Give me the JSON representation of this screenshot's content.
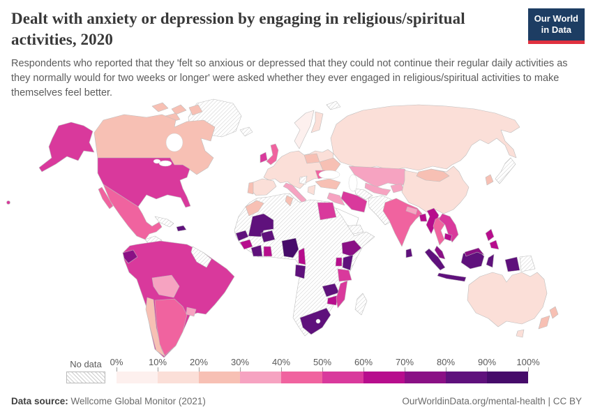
{
  "header": {
    "title": "Dealt with anxiety or depression by engaging in religious/spiritual activities, 2020",
    "subtitle": "Respondents who reported that they 'felt so anxious or depressed that they could not continue their regular daily activities as they normally would for two weeks or longer' were asked whether they ever engaged in religious/spiritual activities to make themselves feel better."
  },
  "logo": {
    "line1": "Our World",
    "line2": "in Data",
    "bg": "#1d3d63",
    "accent": "#e0313f"
  },
  "legend": {
    "no_data_label": "No data",
    "ticks": [
      "0%",
      "10%",
      "20%",
      "30%",
      "40%",
      "50%",
      "60%",
      "70%",
      "80%",
      "90%",
      "100%"
    ],
    "colors": [
      "#fdf0ee",
      "#fbdfd8",
      "#f7c0b4",
      "#f6a3c1",
      "#f0639f",
      "#d9399c",
      "#b70d8d",
      "#8a1085",
      "#5f117c",
      "#460b6a"
    ]
  },
  "footer": {
    "source_label": "Data source:",
    "source_value": "Wellcome Global Monitor (2021)",
    "right": "OurWorldinData.org/mental-health | CC BY"
  },
  "map": {
    "border_color": "#bdbdbd",
    "regions": {
      "greenland": "nd",
      "iceland": "nd",
      "svalbard": "nd",
      "canada": 2,
      "arctic-islands": 2,
      "alaska": 5,
      "usa": 5,
      "hawaii": 5,
      "mexico": 4,
      "baja": 4,
      "guatemala-honduras": "nd",
      "nicaragua": 8,
      "costa-rica-panama": 6,
      "cuba": "nd",
      "dominican-republic": 8,
      "south-america-core": 5,
      "ecuador": 7,
      "bolivia": 3,
      "chile": 2,
      "argentina": 4,
      "uruguay": 3,
      "guyanas": "nd",
      "europe-core": 1,
      "norway-sweden": 0,
      "finland": 1,
      "uk": 4,
      "ireland": 5,
      "spain": 1,
      "portugal": 2,
      "poland": 2,
      "ukraine": 2,
      "romania": 4,
      "italy": 3,
      "greece": 1,
      "west-balkans": "nd",
      "russia": 1,
      "kazakhstan": 3,
      "uzbekistan": 3,
      "turkmenistan": "nd",
      "kyrgyzstan": 3,
      "turkey": 2,
      "iraq": 3,
      "iran": 5,
      "saudi-arabia": "white",
      "yemen-oman": "nd",
      "afghanistan-pakistan": "nd",
      "china": 1,
      "mongolia": 2,
      "japan": "nd",
      "south-korea": 2,
      "india": 4,
      "nepal": 3,
      "bangladesh": 6,
      "sri-lanka": 8,
      "myanmar": 6,
      "thailand": 4,
      "laos-vietnam": 5,
      "cambodia": 6,
      "malaysia-peninsula": 7,
      "malaysia-borneo": 7,
      "sumatra": 8,
      "java": 8,
      "kalimantan": 8,
      "sulawesi": 8,
      "west-papua": 8,
      "papua-new-guinea": "nd",
      "philippines": 6,
      "philippines-south": 6,
      "africa-sahara": "nd",
      "morocco": 2,
      "tunisia": 2,
      "egypt": 5,
      "mali": 8,
      "senegal": 8,
      "guinea": 6,
      "ivory-coast": 8,
      "ghana": 6,
      "burkina-faso": 8,
      "nigeria": 9,
      "cameroon": 6,
      "gabon-congo": 8,
      "ethiopia": 7,
      "kenya": 8,
      "uganda": 6,
      "tanzania": 5,
      "zambia": 8,
      "zimbabwe": 6,
      "mozambique": 5,
      "south-africa": 8,
      "madagascar": "nd",
      "australia": 1,
      "tasmania": 1,
      "new-zealand-north": 2,
      "new-zealand-south": 2
    }
  },
  "chart_data": {
    "type": "heatmap",
    "subtype": "choropleth-world-map",
    "title": "Dealt with anxiety or depression by engaging in religious/spiritual activities, 2020",
    "year": 2020,
    "unit": "% of respondents",
    "legend_bins": [
      "0%",
      "10%",
      "20%",
      "30%",
      "40%",
      "50%",
      "60%",
      "70%",
      "80%",
      "90%",
      "100%"
    ],
    "bin_colors": [
      "#fdf0ee",
      "#fbdfd8",
      "#f7c0b4",
      "#f6a3c1",
      "#f0639f",
      "#d9399c",
      "#b70d8d",
      "#8a1085",
      "#5f117c",
      "#460b6a"
    ],
    "no_data_style": "diagonal-hatch",
    "countries": {
      "United States": "50-60%",
      "Canada": "20-30%",
      "Mexico": "40-50%",
      "Nicaragua": "80-90%",
      "Costa Rica": "60-70%",
      "Panama": "60-70%",
      "Dominican Republic": "80-90%",
      "Colombia": "50-60%",
      "Venezuela": "50-60%",
      "Ecuador": "70-80%",
      "Peru": "50-60%",
      "Brazil": "50-60%",
      "Paraguay": "50-60%",
      "Bolivia": "30-40%",
      "Chile": "20-30%",
      "Argentina": "40-50%",
      "Uruguay": "30-40%",
      "Norway": "0-10%",
      "Sweden": "0-10%",
      "Finland": "10-20%",
      "United Kingdom": "40-50%",
      "Ireland": "50-60%",
      "France": "10-20%",
      "Spain": "10-20%",
      "Portugal": "20-30%",
      "Germany": "10-20%",
      "Poland": "20-30%",
      "Italy": "30-40%",
      "Greece": "10-20%",
      "Romania": "40-50%",
      "Ukraine": "20-30%",
      "Turkey": "20-30%",
      "Russia": "10-20%",
      "Kazakhstan": "30-40%",
      "Uzbekistan": "30-40%",
      "Kyrgyzstan": "30-40%",
      "Iraq": "30-40%",
      "Iran": "50-60%",
      "Egypt": "50-60%",
      "Morocco": "20-30%",
      "Tunisia": "20-30%",
      "Mali": "80-90%",
      "Senegal": "80-90%",
      "Guinea": "60-70%",
      "Ivory Coast": "80-90%",
      "Ghana": "60-70%",
      "Burkina Faso": "80-90%",
      "Nigeria": "90-100%",
      "Cameroon": "60-70%",
      "Congo": "80-90%",
      "Ethiopia": "70-80%",
      "Kenya": "80-90%",
      "Uganda": "60-70%",
      "Tanzania": "50-60%",
      "Zambia": "80-90%",
      "Zimbabwe": "60-70%",
      "Mozambique": "50-60%",
      "South Africa": "80-90%",
      "China": "10-20%",
      "Mongolia": "20-30%",
      "South Korea": "20-30%",
      "India": "40-50%",
      "Nepal": "30-40%",
      "Bangladesh": "60-70%",
      "Sri Lanka": "80-90%",
      "Myanmar": "60-70%",
      "Thailand": "40-50%",
      "Vietnam": "50-60%",
      "Laos": "50-60%",
      "Cambodia": "60-70%",
      "Malaysia": "70-80%",
      "Indonesia": "80-90%",
      "Philippines": "60-70%",
      "Australia": "10-20%",
      "New Zealand": "20-30%"
    },
    "no_data_countries": [
      "Greenland",
      "Iceland",
      "Cuba",
      "Guatemala",
      "Honduras",
      "Guyana",
      "Suriname",
      "Algeria",
      "Libya",
      "Mauritania",
      "Niger",
      "Chad",
      "Sudan",
      "Somalia",
      "DR Congo",
      "Angola",
      "Namibia",
      "Botswana",
      "Madagascar",
      "Yemen",
      "Oman",
      "Syria",
      "Afghanistan",
      "Pakistan",
      "Turkmenistan",
      "Japan",
      "North Korea",
      "Papua New Guinea"
    ]
  }
}
